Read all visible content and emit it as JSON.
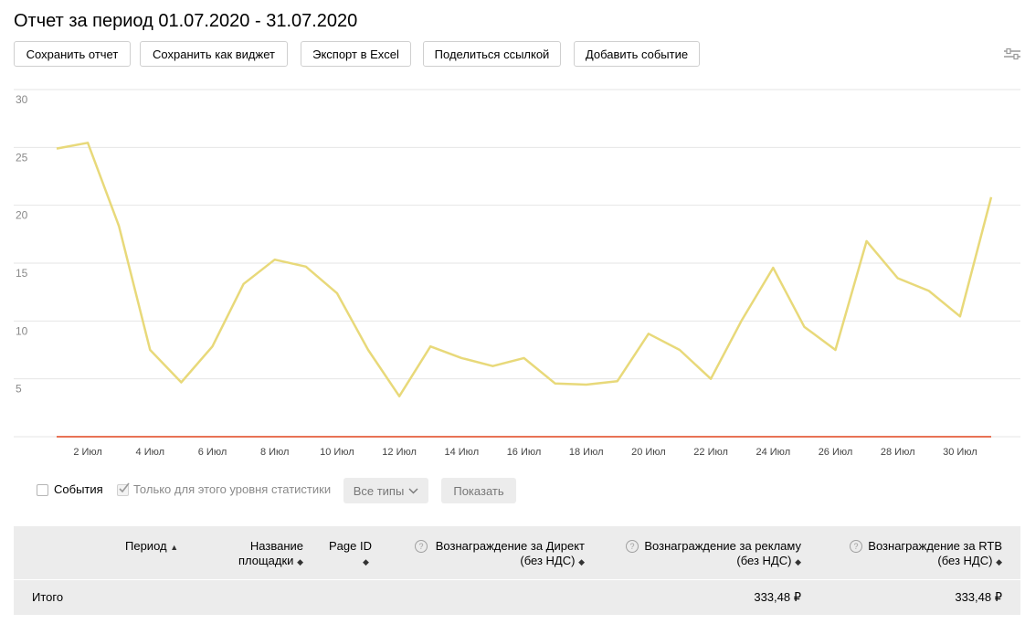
{
  "header": {
    "title": "Отчет за период 01.07.2020 - 31.07.2020"
  },
  "toolbar": {
    "save_report": "Сохранить отчет",
    "save_widget": "Сохранить как виджет",
    "export_excel": "Экспорт в Excel",
    "share_link": "Поделиться ссылкой",
    "add_event": "Добавить событие",
    "settings_icon": "sliders-icon"
  },
  "chart_data": {
    "type": "line",
    "title": "",
    "xlabel": "",
    "ylabel": "",
    "ylim": [
      0,
      30
    ],
    "yticks": [
      5,
      10,
      15,
      20,
      25,
      30
    ],
    "x": [
      "1 Июл",
      "2 Июл",
      "3 Июл",
      "4 Июл",
      "5 Июл",
      "6 Июл",
      "7 Июл",
      "8 Июл",
      "9 Июл",
      "10 Июл",
      "11 Июл",
      "12 Июл",
      "13 Июл",
      "14 Июл",
      "15 Июл",
      "16 Июл",
      "17 Июл",
      "18 Июл",
      "19 Июл",
      "20 Июл",
      "21 Июл",
      "22 Июл",
      "23 Июл",
      "24 Июл",
      "25 Июл",
      "26 Июл",
      "27 Июл",
      "28 Июл",
      "29 Июл",
      "30 Июл",
      "31 Июл"
    ],
    "xtick_labels": [
      "2 Июл",
      "4 Июл",
      "6 Июл",
      "8 Июл",
      "10 Июл",
      "12 Июл",
      "14 Июл",
      "16 Июл",
      "18 Июл",
      "20 Июл",
      "22 Июл",
      "24 Июл",
      "26 Июл",
      "28 Июл",
      "30 Июл"
    ],
    "grid": true,
    "series": [
      {
        "color": "#e8d97a",
        "values": [
          24.9,
          25.4,
          18.2,
          7.5,
          4.7,
          7.8,
          13.2,
          15.3,
          14.7,
          12.4,
          7.5,
          3.5,
          7.8,
          6.8,
          6.1,
          6.8,
          4.6,
          4.5,
          4.8,
          8.9,
          7.5,
          5.0,
          10.1,
          14.6,
          9.5,
          7.5,
          16.9,
          13.7,
          12.6,
          10.4,
          20.7
        ]
      },
      {
        "color": "#e0451f",
        "values": [
          0,
          0,
          0,
          0,
          0,
          0,
          0,
          0,
          0,
          0,
          0,
          0,
          0,
          0,
          0,
          0,
          0,
          0,
          0,
          0,
          0,
          0,
          0,
          0,
          0,
          0,
          0,
          0,
          0,
          0,
          0
        ]
      }
    ]
  },
  "filters": {
    "events_label": "События",
    "events_checked": false,
    "only_level_label": "Только для этого уровня статистики",
    "only_level_checked": true,
    "all_types_label": "Все типы",
    "show_label": "Показать"
  },
  "table": {
    "columns": {
      "period": "Период",
      "site_name_1": "Название",
      "site_name_2": "площадки",
      "page_id": "Page ID",
      "direct_1": "Вознаграждение за Директ",
      "direct_2": "(без НДС)",
      "ads_1": "Вознаграждение за рекламу",
      "ads_2": "(без НДС)",
      "rtb_1": "Вознаграждение за RTB",
      "rtb_2": "(без НДС)"
    },
    "help_glyph": "?",
    "total": {
      "label": "Итого",
      "ads": "333,48 ₽",
      "rtb": "333,48 ₽"
    }
  }
}
